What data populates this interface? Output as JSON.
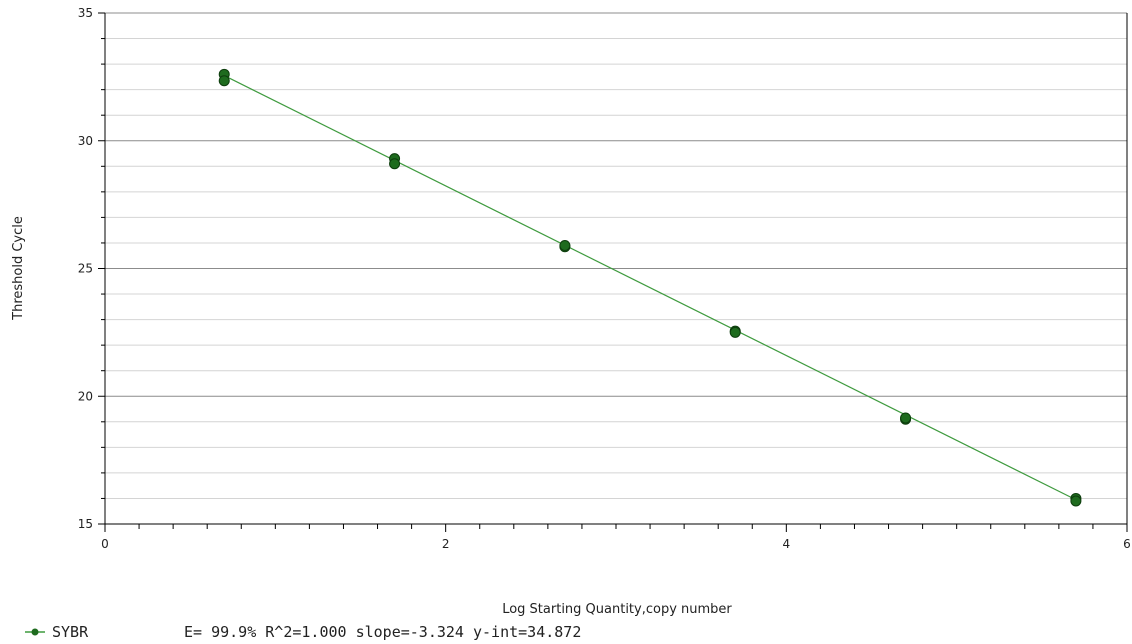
{
  "chart_data": {
    "type": "scatter",
    "xlabel": "Log Starting Quantity,copy number",
    "ylabel": "Threshold Cycle",
    "xlim": [
      0,
      6
    ],
    "ylim": [
      15,
      35
    ],
    "x_ticks": [
      0,
      2,
      4,
      6
    ],
    "y_ticks": [
      15,
      20,
      25,
      30,
      35
    ],
    "grid": true,
    "legend_position": "bottom-left",
    "series": [
      {
        "name": "SYBR",
        "color": "#1e6b1e",
        "points": [
          {
            "x": 0.7,
            "y": 32.6
          },
          {
            "x": 0.7,
            "y": 32.35
          },
          {
            "x": 1.7,
            "y": 29.3
          },
          {
            "x": 1.7,
            "y": 29.1
          },
          {
            "x": 2.7,
            "y": 25.85
          },
          {
            "x": 2.7,
            "y": 25.9
          },
          {
            "x": 3.7,
            "y": 22.55
          },
          {
            "x": 3.7,
            "y": 22.5
          },
          {
            "x": 4.7,
            "y": 19.1
          },
          {
            "x": 4.7,
            "y": 19.15
          },
          {
            "x": 5.7,
            "y": 16.0
          },
          {
            "x": 5.7,
            "y": 15.9
          }
        ],
        "fit_line": {
          "x": [
            0.7,
            5.7
          ],
          "y": [
            32.55,
            15.95
          ],
          "color": "#3f9b3f"
        }
      }
    ],
    "legend": {
      "series_label": "SYBR",
      "stats_text": "E= 99.9% R^2=1.000 slope=-3.324 y-int=34.872"
    }
  }
}
